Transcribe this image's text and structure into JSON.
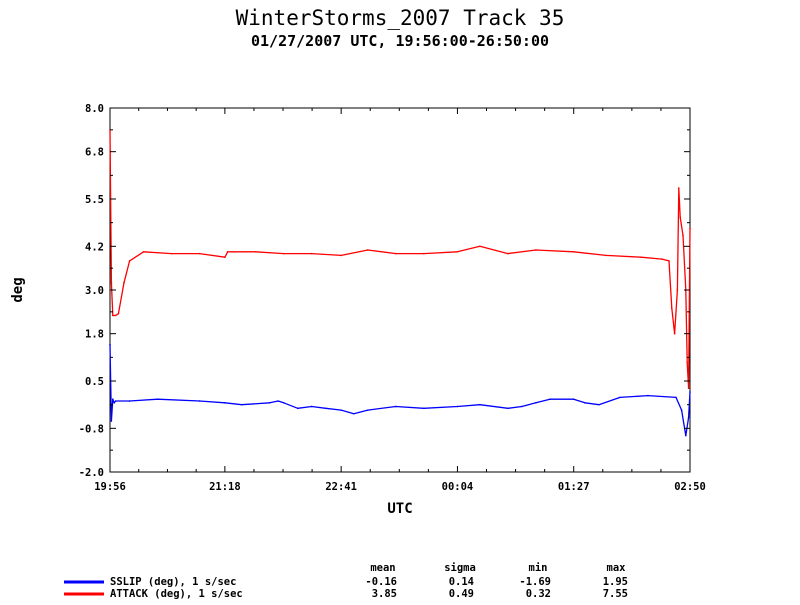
{
  "chart_data": {
    "type": "line",
    "title": "WinterStorms_2007 Track 35",
    "subtitle": "01/27/2007 UTC, 19:56:00-26:50:00",
    "xlabel": "UTC",
    "ylabel": "deg",
    "xlim": [
      "19:56",
      "02:50"
    ],
    "ylim": [
      -2.0,
      8.0
    ],
    "x_ticks": [
      "19:56",
      "21:18",
      "22:41",
      "00:04",
      "01:27",
      "02:50"
    ],
    "y_ticks": [
      "-2.0",
      "-0.8",
      "0.5",
      "1.8",
      "3.0",
      "4.2",
      "5.5",
      "6.8",
      "8.0"
    ],
    "stats_headers": [
      "mean",
      "sigma",
      "min",
      "max"
    ],
    "series": [
      {
        "name": "SSLIP (deg), 1 s/sec",
        "color": "#0000ff",
        "stats": [
          "-0.16",
          "0.14",
          "-1.69",
          "1.95"
        ],
        "x": [
          "19:56",
          "19:57",
          "19:58",
          "19:59",
          "20:00",
          "20:10",
          "20:30",
          "21:00",
          "21:18",
          "21:30",
          "21:50",
          "21:56",
          "22:00",
          "22:10",
          "22:20",
          "22:30",
          "22:41",
          "22:50",
          "23:00",
          "23:20",
          "23:40",
          "00:04",
          "00:20",
          "00:40",
          "00:50",
          "01:00",
          "01:10",
          "01:27",
          "01:35",
          "01:45",
          "02:00",
          "02:20",
          "02:40",
          "02:44",
          "02:47",
          "02:49",
          "02:50"
        ],
        "y": [
          1.5,
          -0.6,
          0.0,
          -0.1,
          -0.05,
          -0.05,
          -0.0,
          -0.05,
          -0.1,
          -0.15,
          -0.1,
          -0.05,
          -0.1,
          -0.25,
          -0.2,
          -0.25,
          -0.3,
          -0.4,
          -0.3,
          -0.2,
          -0.25,
          -0.2,
          -0.15,
          -0.25,
          -0.2,
          -0.1,
          0.0,
          0.0,
          -0.1,
          -0.15,
          0.05,
          0.1,
          0.05,
          -0.3,
          -1.0,
          -0.5,
          0.2
        ]
      },
      {
        "name": "ATTACK (deg), 1 s/sec",
        "color": "#ff0000",
        "stats": [
          "3.85",
          "0.49",
          "0.32",
          "7.55"
        ],
        "x": [
          "19:56",
          "19:57",
          "19:58",
          "20:00",
          "20:02",
          "20:06",
          "20:10",
          "20:20",
          "20:40",
          "21:00",
          "21:18",
          "21:20",
          "21:40",
          "22:00",
          "22:20",
          "22:41",
          "23:00",
          "23:20",
          "23:40",
          "00:04",
          "00:20",
          "00:40",
          "01:00",
          "01:27",
          "01:50",
          "02:15",
          "02:30",
          "02:35",
          "02:37",
          "02:39",
          "02:41",
          "02:42",
          "02:43",
          "02:45",
          "02:47",
          "02:48",
          "02:49",
          "02:50"
        ],
        "y": [
          7.4,
          3.2,
          2.3,
          2.3,
          2.35,
          3.2,
          3.8,
          4.05,
          4.0,
          4.0,
          3.9,
          4.05,
          4.05,
          4.0,
          4.0,
          3.95,
          4.1,
          4.0,
          4.0,
          4.05,
          4.2,
          4.0,
          4.1,
          4.05,
          3.95,
          3.9,
          3.85,
          3.8,
          2.5,
          1.8,
          3.0,
          5.8,
          5.0,
          4.5,
          3.0,
          1.0,
          0.3,
          4.7
        ]
      }
    ]
  }
}
